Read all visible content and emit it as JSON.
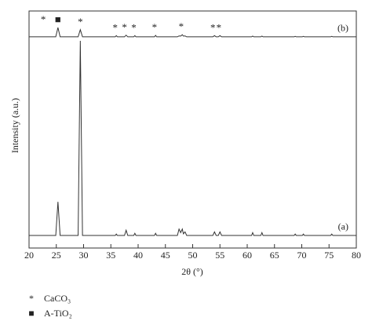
{
  "chart_data": {
    "type": "line",
    "xlabel": "2θ (°)",
    "ylabel": "Intensity (a.u.)",
    "x": [
      20,
      24.9,
      25.3,
      25.7,
      29.0,
      29.4,
      29.8,
      35.8,
      36.0,
      36.2,
      37.5,
      37.8,
      38.1,
      39.2,
      39.4,
      39.6,
      43.0,
      43.2,
      43.4,
      47.2,
      47.5,
      47.8,
      48.1,
      48.3,
      48.6,
      48.9,
      53.7,
      54.0,
      54.3,
      54.7,
      55.0,
      55.3,
      60.8,
      61.0,
      61.2,
      62.5,
      62.7,
      62.9,
      68.6,
      68.8,
      69.0,
      70.1,
      70.3,
      70.5,
      75.3,
      75.5,
      75.7,
      80
    ],
    "series": [
      {
        "name": "(a)",
        "color": "#333333",
        "values": [
          5.3,
          5.3,
          19.5,
          5.3,
          5.3,
          87.4,
          5.3,
          5.3,
          5.9,
          5.3,
          5.3,
          7.5,
          5.3,
          5.3,
          6.2,
          5.3,
          5.3,
          6.2,
          5.3,
          5.3,
          8.0,
          6.5,
          8.0,
          6.0,
          6.8,
          5.3,
          5.3,
          6.8,
          5.3,
          5.3,
          6.8,
          5.3,
          5.3,
          6.5,
          5.3,
          5.3,
          6.5,
          5.3,
          5.3,
          5.9,
          5.3,
          5.3,
          5.9,
          5.3,
          5.3,
          5.9,
          5.3,
          5.3
        ]
      },
      {
        "name": "(b)",
        "color": "#333333",
        "values": [
          89.1,
          89.1,
          93.0,
          89.1,
          89.1,
          92.1,
          89.1,
          89.1,
          89.6,
          89.1,
          89.1,
          89.8,
          89.1,
          89.1,
          89.6,
          89.1,
          89.1,
          89.7,
          89.1,
          89.1,
          89.5,
          89.4,
          90.0,
          89.4,
          89.5,
          89.1,
          89.1,
          89.6,
          89.1,
          89.1,
          89.6,
          89.1,
          89.1,
          89.4,
          89.1,
          89.1,
          89.4,
          89.1,
          89.1,
          89.3,
          89.1,
          89.1,
          89.3,
          89.1,
          89.1,
          89.3,
          89.1,
          89.1
        ]
      }
    ],
    "xlim": [
      20,
      80
    ],
    "xticks": [
      20,
      25,
      30,
      35,
      40,
      45,
      50,
      55,
      60,
      65,
      70,
      75,
      80
    ],
    "ylim": [
      0,
      100
    ],
    "annotations": [
      {
        "text": "*",
        "x": 22.6
      },
      {
        "text": "■",
        "x": 25.3
      },
      {
        "text": "*",
        "x": 29.4
      },
      {
        "text": "*",
        "x": 35.8
      },
      {
        "text": "*",
        "x": 37.5
      },
      {
        "text": "*",
        "x": 39.2
      },
      {
        "text": "*",
        "x": 43.0
      },
      {
        "text": "*",
        "x": 47.9
      },
      {
        "text": "*",
        "x": 53.7
      },
      {
        "text": "*",
        "x": 54.8
      }
    ],
    "legend": [
      {
        "marker": "*",
        "name": "CaCO₃"
      },
      {
        "marker": "■",
        "name": "A-TiO₂"
      }
    ]
  }
}
